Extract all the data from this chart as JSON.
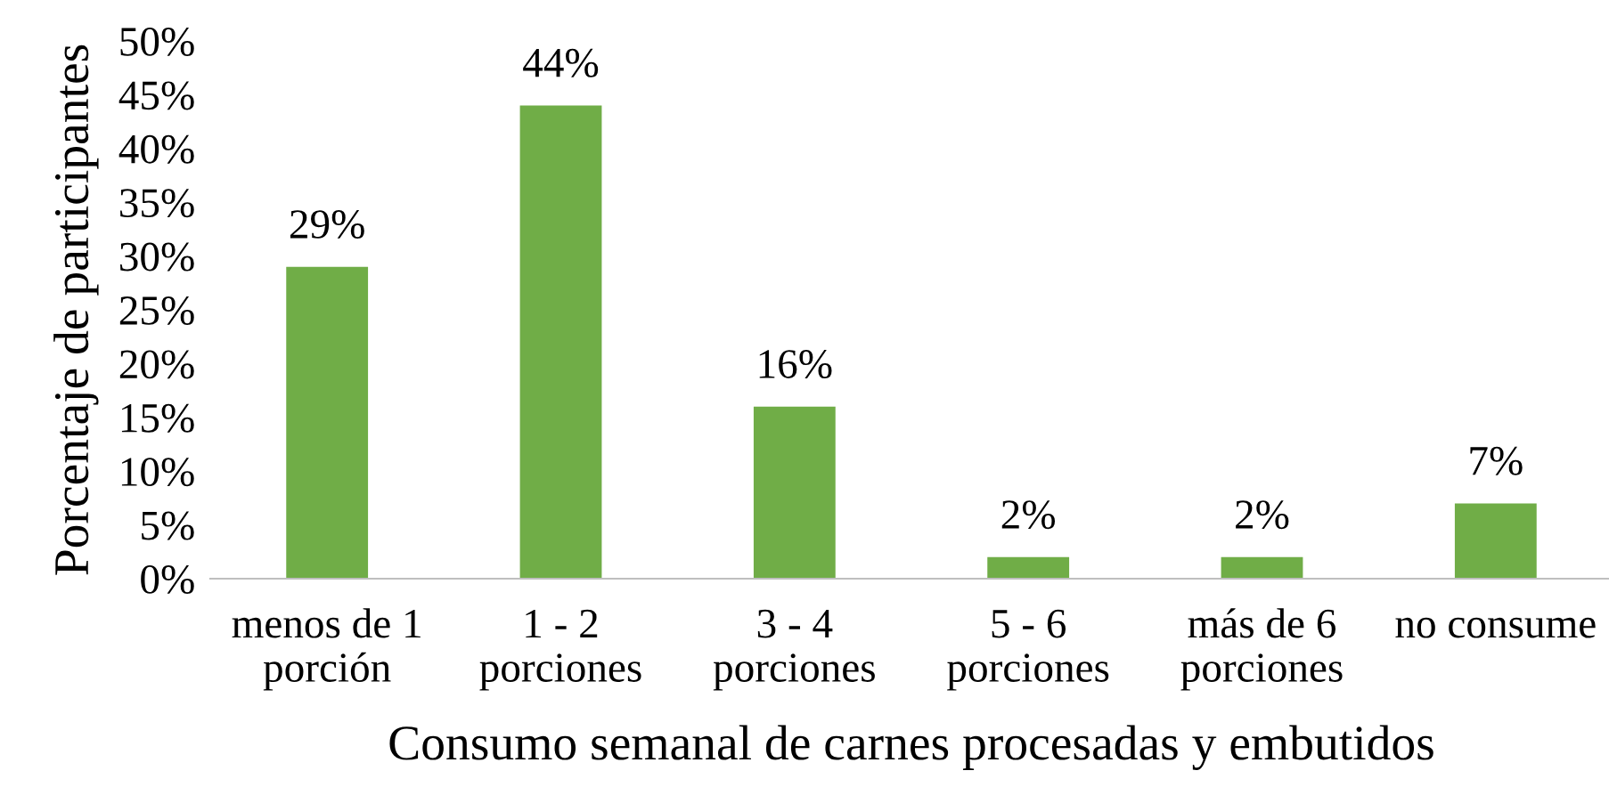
{
  "chart_data": {
    "type": "bar",
    "xlabel": "Consumo semanal de carnes procesadas y embutidos",
    "ylabel": "Porcentaje de participantes",
    "categories": [
      "menos de 1\nporción",
      "1 - 2\nporciones",
      "3 - 4\nporciones",
      "5 - 6\nporciones",
      "más de 6\nporciones",
      "no consume"
    ],
    "values": [
      29,
      44,
      16,
      2,
      2,
      7
    ],
    "value_labels": [
      "29%",
      "44%",
      "16%",
      "2%",
      "2%",
      "7%"
    ],
    "color": "#70ad47",
    "ylim": [
      0,
      50
    ],
    "yticks": [
      {
        "value": 0,
        "label": "0%"
      },
      {
        "value": 5,
        "label": "5%"
      },
      {
        "value": 10,
        "label": "10%"
      },
      {
        "value": 15,
        "label": "15%"
      },
      {
        "value": 20,
        "label": "20%"
      },
      {
        "value": 25,
        "label": "25%"
      },
      {
        "value": 30,
        "label": "30%"
      },
      {
        "value": 35,
        "label": "35%"
      },
      {
        "value": 40,
        "label": "40%"
      },
      {
        "value": 45,
        "label": "45%"
      },
      {
        "value": 50,
        "label": "50%"
      }
    ],
    "grid": false,
    "legend": false
  }
}
